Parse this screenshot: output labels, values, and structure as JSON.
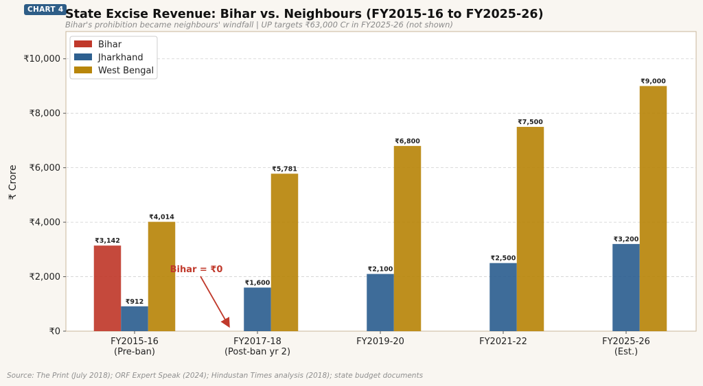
{
  "badge": "CHART 4",
  "source": "Source: The Print (July 2018); ORF Expert Speak (2024); Hindustan Times analysis (2018); state budget documents",
  "chart_data": {
    "type": "bar",
    "title": "State Excise Revenue: Bihar vs. Neighbours (FY2015-16 to FY2025-26)",
    "subtitle": "Bihar's prohibition became neighbours' windfall  |  UP targets ₹63,000 Cr in FY2025-26 (not shown)",
    "ylabel": "₹ Crore",
    "xlabel": "",
    "ylim": [
      0,
      11000
    ],
    "yticks": [
      0,
      2000,
      4000,
      6000,
      8000,
      10000
    ],
    "ytick_labels": [
      "₹0",
      "₹2,000",
      "₹4,000",
      "₹6,000",
      "₹8,000",
      "₹10,000"
    ],
    "grid": true,
    "legend_position": "top-left",
    "categories": [
      [
        "FY2015-16",
        "(Pre-ban)"
      ],
      [
        "FY2017-18",
        "(Post-ban yr 2)"
      ],
      [
        "FY2019-20"
      ],
      [
        "FY2021-22"
      ],
      [
        "FY2025-26",
        "(Est.)"
      ]
    ],
    "series": [
      {
        "name": "Bihar",
        "color": "#c0392b",
        "values": [
          3142,
          null,
          null,
          null,
          null
        ],
        "labels": [
          "₹3,142",
          null,
          null,
          null,
          null
        ]
      },
      {
        "name": "Jharkhand",
        "color": "#2e6090",
        "values": [
          912,
          1600,
          2100,
          2500,
          3200
        ],
        "labels": [
          "₹912",
          "₹1,600",
          "₹2,100",
          "₹2,500",
          "₹3,200"
        ]
      },
      {
        "name": "West Bengal",
        "color": "#b8860b",
        "values": [
          4014,
          5781,
          6800,
          7500,
          9000
        ],
        "labels": [
          "₹4,014",
          "₹5,781",
          "₹6,800",
          "₹7,500",
          "₹9,000"
        ]
      }
    ],
    "annotation": {
      "text": "Bihar = ₹0",
      "target_category": 1,
      "target_value": 0,
      "color": "#c0392b"
    }
  }
}
